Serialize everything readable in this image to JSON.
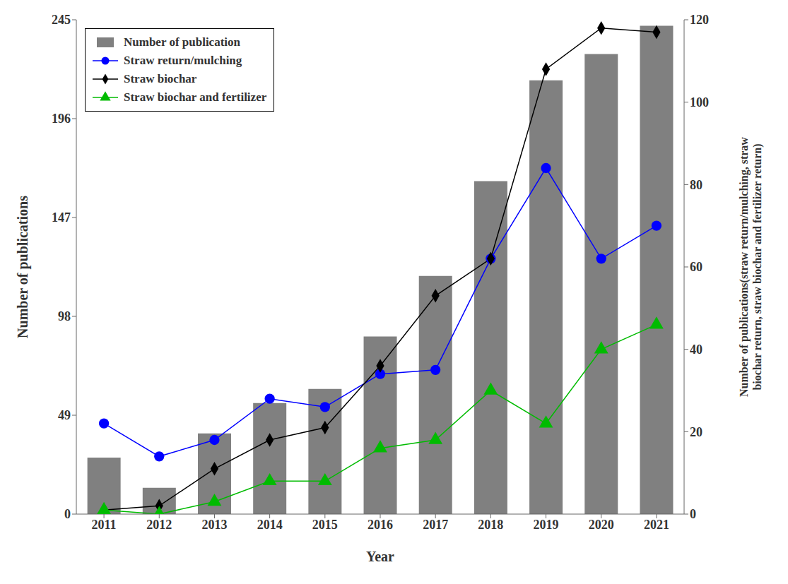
{
  "chart_data": {
    "type": "bar",
    "xlabel": "Year",
    "ylabel": "Number of publications",
    "y2label": "Number of publications(straw return/mulching, straw\nbiochar return, straw biochar and fertilizer return)",
    "categories": [
      "2011",
      "2012",
      "2013",
      "2014",
      "2015",
      "2016",
      "2017",
      "2018",
      "2019",
      "2020",
      "2021"
    ],
    "series": [
      {
        "name": "Number of publication",
        "type": "bar",
        "color": "#808080",
        "values": [
          28,
          13,
          40,
          55,
          62,
          88,
          118,
          165,
          215,
          228,
          242
        ]
      },
      {
        "name": "Straw return/mulching",
        "type": "line",
        "axis": "y2",
        "color": "#0000ff",
        "marker": "circle",
        "values": [
          22,
          14,
          18,
          28,
          26,
          34,
          35,
          62,
          84,
          62,
          70
        ]
      },
      {
        "name": "Straw biochar",
        "type": "line",
        "axis": "y2",
        "color": "#000000",
        "marker": "diamond",
        "values": [
          1,
          2,
          11,
          18,
          21,
          36,
          53,
          62,
          108,
          118,
          117
        ]
      },
      {
        "name": "Straw biochar and fertilizer",
        "type": "line",
        "axis": "y2",
        "color": "#00bb00",
        "marker": "triangle",
        "values": [
          1,
          0,
          3,
          8,
          8,
          16,
          18,
          30,
          22,
          40,
          46
        ]
      }
    ],
    "ylim": [
      0,
      245
    ],
    "yticks": [
      0,
      49,
      98,
      147,
      196,
      245
    ],
    "y2lim": [
      0,
      120
    ],
    "y2ticks": [
      0,
      20,
      40,
      60,
      80,
      100,
      120
    ],
    "grid": false,
    "legend": "upper left"
  }
}
